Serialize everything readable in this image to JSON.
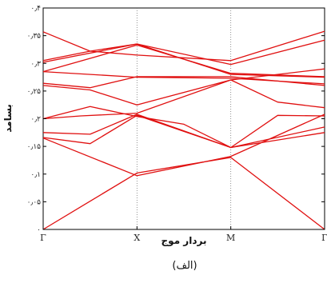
{
  "chart_data": {
    "type": "line",
    "title": "",
    "xlabel": "بردار موج",
    "ylabel": "بسامد",
    "caption": "(الف)",
    "x_ticks": [
      {
        "label": "Γ",
        "x": 0
      },
      {
        "label": "X",
        "x": 1
      },
      {
        "label": "M",
        "x": 2
      },
      {
        "label": "Γ",
        "x": 3
      }
    ],
    "y_ticks": [
      {
        "label": "۰",
        "value": 0
      },
      {
        "label": "۰٫۰۵",
        "value": 0.05
      },
      {
        "label": "۰٫۱",
        "value": 0.1
      },
      {
        "label": "۰٫۱۵",
        "value": 0.15
      },
      {
        "label": "۰٫۲",
        "value": 0.2
      },
      {
        "label": "۰٫۲۵",
        "value": 0.25
      },
      {
        "label": "۰٫۳",
        "value": 0.3
      },
      {
        "label": "۰٫۳۵",
        "value": 0.35
      },
      {
        "label": "۰٫۴",
        "value": 0.4
      }
    ],
    "ylim": [
      0,
      0.4
    ],
    "xlim": [
      0,
      3
    ],
    "line_color": "#e01010",
    "grid": "vertical dotted lines at X and M",
    "series": [
      {
        "x": [
          0,
          1,
          2,
          3
        ],
        "y": [
          0.0,
          0.102,
          0.13,
          0.0
        ]
      },
      {
        "x": [
          0,
          1,
          2,
          3
        ],
        "y": [
          0.165,
          0.097,
          0.132,
          0.208
        ]
      },
      {
        "x": [
          0,
          0.5,
          1,
          2,
          3
        ],
        "y": [
          0.166,
          0.155,
          0.206,
          0.148,
          0.175
        ]
      },
      {
        "x": [
          0,
          0.5,
          1,
          2,
          3
        ],
        "y": [
          0.175,
          0.172,
          0.208,
          0.148,
          0.185
        ]
      },
      {
        "x": [
          0,
          0.5,
          1,
          1.5,
          2,
          2.5,
          3
        ],
        "y": [
          0.2,
          0.222,
          0.204,
          0.19,
          0.148,
          0.206,
          0.205
        ]
      },
      {
        "x": [
          0,
          0.4,
          1,
          2,
          2.5,
          3
        ],
        "y": [
          0.2,
          0.205,
          0.21,
          0.27,
          0.23,
          0.22
        ]
      },
      {
        "x": [
          0,
          0.5,
          1,
          2,
          3
        ],
        "y": [
          0.26,
          0.252,
          0.225,
          0.27,
          0.29
        ]
      },
      {
        "x": [
          0,
          0.5,
          1,
          2,
          3
        ],
        "y": [
          0.264,
          0.256,
          0.276,
          0.276,
          0.26
        ]
      },
      {
        "x": [
          0,
          1,
          2,
          3
        ],
        "y": [
          0.285,
          0.275,
          0.273,
          0.263
        ]
      },
      {
        "x": [
          0,
          1,
          2,
          3
        ],
        "y": [
          0.285,
          0.333,
          0.282,
          0.276
        ]
      },
      {
        "x": [
          0,
          1,
          2,
          3
        ],
        "y": [
          0.302,
          0.335,
          0.28,
          0.275
        ]
      },
      {
        "x": [
          0,
          0.5,
          1,
          2,
          3
        ],
        "y": [
          0.305,
          0.322,
          0.335,
          0.298,
          0.342
        ]
      },
      {
        "x": [
          0,
          0.5,
          1,
          2,
          3
        ],
        "y": [
          0.357,
          0.322,
          0.315,
          0.305,
          0.358
        ]
      }
    ]
  }
}
